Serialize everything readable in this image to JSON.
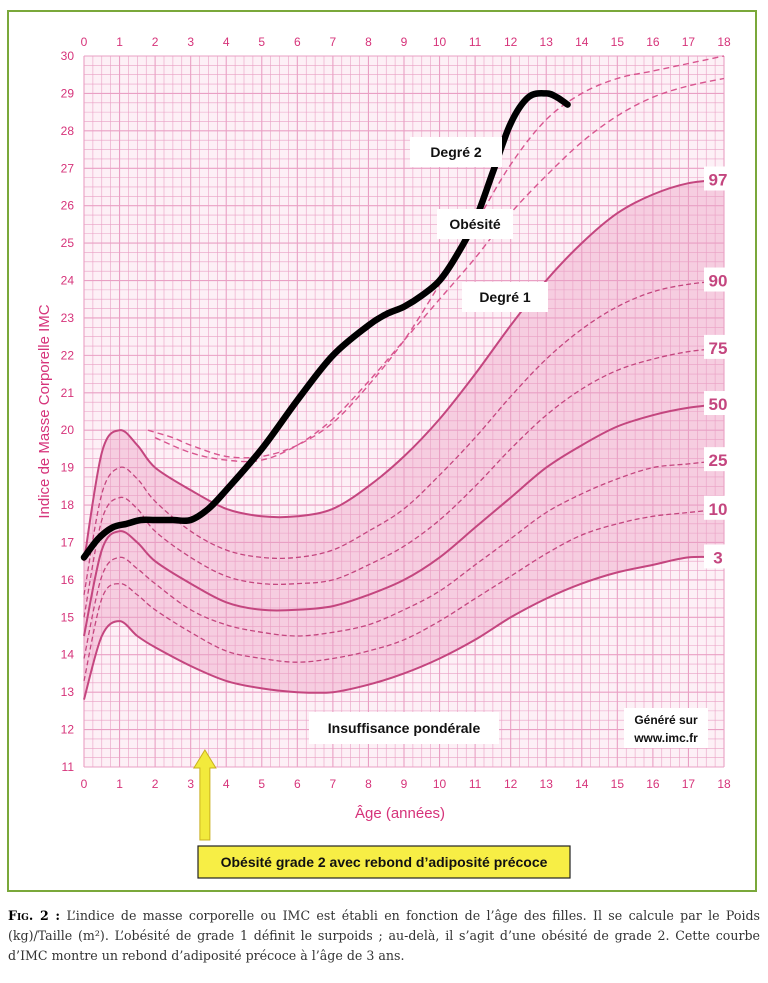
{
  "chart_data": {
    "type": "line",
    "xlabel": "Âge (années)",
    "ylabel": "Indice de Masse Corporelle IMC",
    "xlim": [
      0,
      18
    ],
    "ylim": [
      11,
      30
    ],
    "x_ticks": [
      "0",
      "1",
      "2",
      "3",
      "4",
      "5",
      "6",
      "7",
      "8",
      "9",
      "10",
      "11",
      "12",
      "13",
      "14",
      "15",
      "16",
      "17",
      "18"
    ],
    "y_ticks": [
      "11",
      "12",
      "13",
      "14",
      "15",
      "16",
      "17",
      "18",
      "19",
      "20",
      "21",
      "22",
      "23",
      "24",
      "25",
      "26",
      "27",
      "28",
      "29",
      "30"
    ],
    "grid": true,
    "percentile_curves": [
      {
        "label": "97",
        "x": [
          0,
          0.5,
          1,
          1.5,
          2,
          3,
          4,
          5,
          6,
          7,
          8,
          9,
          10,
          11,
          12,
          13,
          14,
          15,
          16,
          17,
          18
        ],
        "y": [
          16.5,
          19.4,
          20.0,
          19.6,
          19.0,
          18.4,
          17.9,
          17.7,
          17.7,
          17.9,
          18.5,
          19.3,
          20.3,
          21.5,
          22.8,
          24.0,
          25.0,
          25.8,
          26.3,
          26.6,
          26.7
        ]
      },
      {
        "label": "90",
        "x": [
          0,
          0.5,
          1,
          1.5,
          2,
          3,
          4,
          5,
          6,
          7,
          8,
          9,
          10,
          11,
          12,
          13,
          14,
          15,
          16,
          17,
          18
        ],
        "y": [
          15.6,
          18.3,
          19.0,
          18.7,
          18.1,
          17.3,
          16.8,
          16.6,
          16.6,
          16.8,
          17.3,
          17.9,
          18.8,
          19.8,
          20.9,
          21.9,
          22.7,
          23.3,
          23.7,
          23.9,
          24.0
        ]
      },
      {
        "label": "75",
        "x": [
          0,
          0.5,
          1,
          1.5,
          2,
          3,
          4,
          5,
          6,
          7,
          8,
          9,
          10,
          11,
          12,
          13,
          14,
          15,
          16,
          17,
          18
        ],
        "y": [
          15.0,
          17.6,
          18.2,
          17.9,
          17.3,
          16.6,
          16.1,
          15.9,
          15.9,
          16.0,
          16.4,
          16.9,
          17.6,
          18.5,
          19.5,
          20.4,
          21.1,
          21.6,
          21.9,
          22.1,
          22.2
        ]
      },
      {
        "label": "50",
        "x": [
          0,
          0.5,
          1,
          1.5,
          2,
          3,
          4,
          5,
          6,
          7,
          8,
          9,
          10,
          11,
          12,
          13,
          14,
          15,
          16,
          17,
          18
        ],
        "y": [
          14.5,
          16.8,
          17.3,
          17.0,
          16.5,
          15.9,
          15.4,
          15.2,
          15.2,
          15.3,
          15.6,
          16.0,
          16.6,
          17.4,
          18.2,
          19.0,
          19.6,
          20.1,
          20.4,
          20.6,
          20.7
        ]
      },
      {
        "label": "25",
        "x": [
          0,
          0.5,
          1,
          1.5,
          2,
          3,
          4,
          5,
          6,
          7,
          8,
          9,
          10,
          11,
          12,
          13,
          14,
          15,
          16,
          17,
          18
        ],
        "y": [
          13.9,
          16.1,
          16.6,
          16.3,
          15.9,
          15.2,
          14.8,
          14.6,
          14.5,
          14.6,
          14.8,
          15.2,
          15.7,
          16.4,
          17.1,
          17.8,
          18.3,
          18.7,
          19.0,
          19.1,
          19.2
        ]
      },
      {
        "label": "10",
        "x": [
          0,
          0.5,
          1,
          1.5,
          2,
          3,
          4,
          5,
          6,
          7,
          8,
          9,
          10,
          11,
          12,
          13,
          14,
          15,
          16,
          17,
          18
        ],
        "y": [
          13.3,
          15.5,
          15.9,
          15.6,
          15.2,
          14.6,
          14.1,
          13.9,
          13.8,
          13.9,
          14.1,
          14.4,
          14.9,
          15.5,
          16.1,
          16.7,
          17.2,
          17.5,
          17.7,
          17.8,
          17.9
        ]
      },
      {
        "label": "3",
        "x": [
          0,
          0.5,
          1,
          1.5,
          2,
          3,
          4,
          5,
          6,
          7,
          8,
          9,
          10,
          11,
          12,
          13,
          14,
          15,
          16,
          17,
          18
        ],
        "y": [
          12.8,
          14.5,
          14.9,
          14.5,
          14.2,
          13.7,
          13.3,
          13.1,
          13.0,
          13.0,
          13.2,
          13.5,
          13.9,
          14.4,
          15.0,
          15.5,
          15.9,
          16.2,
          16.4,
          16.6,
          16.6
        ]
      }
    ],
    "threshold_curves": [
      {
        "name": "Degré 1",
        "x": [
          2,
          3,
          4,
          5,
          6,
          7,
          8,
          9,
          10,
          11,
          12,
          13,
          14,
          15,
          16,
          17,
          18
        ],
        "y": [
          19.8,
          19.4,
          19.2,
          19.2,
          19.6,
          20.3,
          21.3,
          22.4,
          23.5,
          24.6,
          25.8,
          26.8,
          27.7,
          28.4,
          28.9,
          29.2,
          29.4
        ]
      },
      {
        "name": "Degré 2",
        "x": [
          1.8,
          2.5,
          3,
          4,
          5,
          6,
          7,
          8,
          9,
          10,
          11,
          12,
          13,
          14,
          15,
          16,
          17,
          18
        ],
        "y": [
          20.0,
          19.8,
          19.6,
          19.3,
          19.3,
          19.6,
          20.2,
          21.2,
          22.4,
          23.9,
          25.5,
          27.1,
          28.3,
          29.0,
          29.4,
          29.6,
          29.8,
          30.0
        ]
      }
    ],
    "patient_curve": {
      "x": [
        0,
        0.4,
        0.8,
        1.2,
        1.6,
        2,
        2.5,
        3,
        3.5,
        4,
        5,
        6,
        7,
        8,
        8.5,
        9,
        9.5,
        10,
        10.5,
        11,
        11.5,
        12,
        12.5,
        13,
        13.3,
        13.6
      ],
      "y": [
        16.6,
        17.1,
        17.4,
        17.5,
        17.6,
        17.6,
        17.6,
        17.6,
        17.9,
        18.4,
        19.5,
        20.8,
        22.0,
        22.8,
        23.1,
        23.3,
        23.6,
        24.0,
        24.7,
        25.6,
        26.9,
        28.2,
        28.9,
        29.0,
        28.9,
        28.7
      ]
    },
    "labels": {
      "degre2": "Degré 2",
      "obesite": "Obésité",
      "degre1": "Degré 1",
      "insuffisance": "Insuffisance pondérale",
      "genere_line1": "Généré sur",
      "genere_line2": "www.imc.fr",
      "callout": "Obésité grade 2 avec rebond d’adiposité précoce"
    },
    "callout_x": 3.4,
    "colors": {
      "grid": "#e9a0c4",
      "band": "#f6cde0",
      "percentile": "#c4467f",
      "tick_label": "#d6337a",
      "patient": "#000000",
      "arrow": "#f2ea3c",
      "callout_bg": "#f7ee45",
      "frame": "#7aa83a"
    }
  },
  "caption": {
    "fig_label": "Fig. 2 :",
    "text": "L’indice de masse corporelle ou IMC est établi en fonction de l’âge des filles. Il se calcule par le Poids (kg)/Taille (m²). L’obésité de grade 1 définit le surpoids ; au-delà, il s’agit d’une obésité de grade 2. Cette courbe d’IMC montre un rebond d’adiposité précoce à l’âge de 3 ans."
  }
}
